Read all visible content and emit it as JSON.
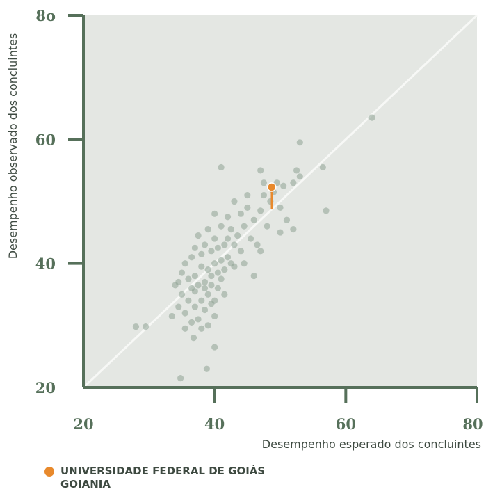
{
  "chart_data": {
    "type": "scatter",
    "xlabel": "Desempenho esperado dos concluintes",
    "ylabel": "Desempenho observado dos concluintes",
    "xlim": [
      20,
      80
    ],
    "ylim": [
      20,
      80
    ],
    "x_ticks": [
      "20",
      "40",
      "60",
      "80"
    ],
    "y_ticks": [
      "20",
      "40",
      "60",
      "8o"
    ],
    "reference_line": "y = x",
    "grid": false,
    "colors": {
      "background": "#e4e7e3",
      "axis": "#56705a",
      "points": "#8ea294",
      "highlight": "#e8892c",
      "reference_line": "#f7f8f6"
    },
    "series": [
      {
        "values": [
          [
            28,
            29.8
          ],
          [
            29.5,
            29.8
          ],
          [
            33.5,
            31.5
          ],
          [
            34,
            36.5
          ],
          [
            34.5,
            37
          ],
          [
            34.5,
            33
          ],
          [
            34.8,
            21.5
          ],
          [
            35,
            38.5
          ],
          [
            35,
            35
          ],
          [
            35.5,
            32
          ],
          [
            35.5,
            29.5
          ],
          [
            35.5,
            40
          ],
          [
            36,
            37.5
          ],
          [
            36,
            34
          ],
          [
            36.5,
            36
          ],
          [
            36.5,
            30.5
          ],
          [
            36.5,
            41
          ],
          [
            36.8,
            28
          ],
          [
            37,
            33
          ],
          [
            37,
            38
          ],
          [
            37,
            42.5
          ],
          [
            37,
            35.5
          ],
          [
            37.5,
            36.5
          ],
          [
            37.5,
            31
          ],
          [
            37.5,
            44.5
          ],
          [
            38,
            39.5
          ],
          [
            38,
            34
          ],
          [
            38,
            29.5
          ],
          [
            38,
            41.5
          ],
          [
            38.5,
            37
          ],
          [
            38.5,
            32.5
          ],
          [
            38.5,
            36
          ],
          [
            38.5,
            43
          ],
          [
            38.8,
            23
          ],
          [
            39,
            39
          ],
          [
            39,
            35
          ],
          [
            39,
            30
          ],
          [
            39,
            45.5
          ],
          [
            39.5,
            38
          ],
          [
            39.5,
            33.5
          ],
          [
            39.5,
            42
          ],
          [
            39.5,
            36.5
          ],
          [
            40,
            40
          ],
          [
            40,
            44
          ],
          [
            40,
            34
          ],
          [
            40,
            31.5
          ],
          [
            40,
            48
          ],
          [
            40,
            26.5
          ],
          [
            40.5,
            38.5
          ],
          [
            40.5,
            36
          ],
          [
            40.5,
            42.5
          ],
          [
            41,
            40.5
          ],
          [
            41,
            55.5
          ],
          [
            41,
            37.5
          ],
          [
            41,
            46
          ],
          [
            41.5,
            43
          ],
          [
            41.5,
            39
          ],
          [
            41.5,
            35
          ],
          [
            42,
            41
          ],
          [
            42,
            44
          ],
          [
            42,
            47.5
          ],
          [
            42.5,
            40
          ],
          [
            42.5,
            45.5
          ],
          [
            43,
            43
          ],
          [
            43,
            39.5
          ],
          [
            43,
            50
          ],
          [
            43.5,
            44.5
          ],
          [
            44,
            42
          ],
          [
            44,
            48
          ],
          [
            44.5,
            46
          ],
          [
            44.5,
            40
          ],
          [
            45,
            49
          ],
          [
            45,
            51
          ],
          [
            45.5,
            44
          ],
          [
            46,
            47
          ],
          [
            46,
            38
          ],
          [
            46.5,
            43
          ],
          [
            47,
            55
          ],
          [
            47,
            48.5
          ],
          [
            47,
            42
          ],
          [
            47.5,
            51
          ],
          [
            47.5,
            53
          ],
          [
            48,
            46
          ],
          [
            48.5,
            50
          ],
          [
            49,
            51.5
          ],
          [
            49.5,
            53
          ],
          [
            50,
            49
          ],
          [
            50,
            45
          ],
          [
            50.5,
            52.5
          ],
          [
            51,
            47
          ],
          [
            52,
            45.5
          ],
          [
            52,
            53
          ],
          [
            52.5,
            55
          ],
          [
            53,
            59.5
          ],
          [
            53,
            54
          ],
          [
            56.5,
            55.5
          ],
          [
            57,
            48.5
          ],
          [
            64,
            63.5
          ]
        ]
      },
      {
        "values": [
          [
            48.7,
            52.3
          ]
        ],
        "expected": 48.7
      }
    ],
    "legend": {
      "position": "bottom-left",
      "line1": "UNIVERSIDADE FEDERAL DE GOIÁS",
      "line2": "GOIANIA"
    }
  }
}
